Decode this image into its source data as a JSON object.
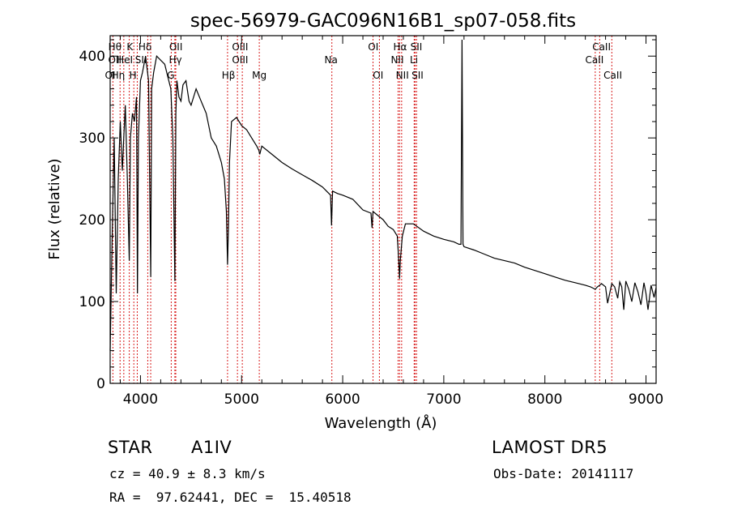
{
  "chart_data": {
    "type": "line",
    "title": "spec-56979-GAC096N16B1_sp07-058.fits",
    "xlabel": "Wavelength (Å)",
    "ylabel": "Flux (relative)",
    "xlim": [
      3700,
      9100
    ],
    "ylim": [
      0,
      425
    ],
    "xticks": [
      4000,
      5000,
      6000,
      7000,
      8000,
      9000
    ],
    "yticks": [
      0,
      100,
      200,
      300,
      400
    ],
    "line_color": "#000000",
    "marker_color": "#d81b1b",
    "series": [
      {
        "x": [
          3700,
          3720,
          3740,
          3760,
          3780,
          3800,
          3820,
          3835,
          3850,
          3870,
          3889,
          3900,
          3920,
          3940,
          3960,
          3970,
          3980,
          4000,
          4020,
          4050,
          4080,
          4101,
          4110,
          4130,
          4160,
          4200,
          4240,
          4270,
          4300,
          4320,
          4340,
          4350,
          4360,
          4380,
          4400,
          4420,
          4450,
          4480,
          4500,
          4550,
          4600,
          4650,
          4700,
          4750,
          4800,
          4830,
          4850,
          4861,
          4870,
          4880,
          4900,
          4950,
          5000,
          5050,
          5100,
          5150,
          5170,
          5180,
          5200,
          5300,
          5400,
          5500,
          5600,
          5700,
          5800,
          5880,
          5890,
          5900,
          5950,
          6000,
          6100,
          6200,
          6280,
          6290,
          6300,
          6350,
          6400,
          6450,
          6500,
          6540,
          6555,
          6563,
          6570,
          6590,
          6620,
          6700,
          6800,
          6900,
          7000,
          7100,
          7150,
          7170,
          7180,
          7190,
          7200,
          7300,
          7400,
          7500,
          7600,
          7700,
          7800,
          7900,
          8000,
          8100,
          8200,
          8300,
          8400,
          8450,
          8498,
          8520,
          8542,
          8560,
          8600,
          8620,
          8662,
          8690,
          8720,
          8740,
          8760,
          8780,
          8800,
          8830,
          8860,
          8890,
          8920,
          8950,
          8980,
          9000,
          9020,
          9050,
          9080,
          9100
        ],
        "y": [
          40,
          180,
          300,
          110,
          250,
          320,
          260,
          300,
          340,
          250,
          150,
          300,
          330,
          320,
          350,
          110,
          300,
          370,
          380,
          400,
          370,
          130,
          360,
          380,
          400,
          395,
          390,
          375,
          360,
          300,
          125,
          330,
          370,
          350,
          345,
          365,
          370,
          345,
          340,
          360,
          345,
          330,
          300,
          290,
          270,
          250,
          210,
          145,
          190,
          270,
          320,
          325,
          315,
          310,
          300,
          290,
          285,
          280,
          290,
          280,
          270,
          262,
          255,
          248,
          240,
          230,
          193,
          235,
          232,
          230,
          225,
          212,
          208,
          190,
          210,
          205,
          200,
          192,
          188,
          180,
          150,
          128,
          150,
          180,
          195,
          195,
          186,
          180,
          176,
          173,
          170,
          170,
          420,
          170,
          167,
          163,
          158,
          153,
          150,
          147,
          142,
          138,
          134,
          130,
          126,
          123,
          120,
          118,
          115,
          118,
          120,
          122,
          118,
          98,
          122,
          118,
          104,
          124,
          118,
          90,
          125,
          115,
          100,
          123,
          112,
          96,
          123,
          110,
          90,
          120,
          105,
          117
        ]
      }
    ],
    "lines": [
      {
        "name": "Hθ",
        "x": 3798,
        "row": 1,
        "tx": 3747
      },
      {
        "name": "K",
        "x": 3934,
        "row": 1,
        "tx": 3895
      },
      {
        "name": "Hδ",
        "x": 4101,
        "row": 1,
        "tx": 4045
      },
      {
        "name": "OII",
        "x": 4349,
        "row": 1,
        "tx": 4350
      },
      {
        "name": "OIII",
        "x": 5007,
        "row": 1,
        "tx": 4985
      },
      {
        "name": "OI",
        "x": 6300,
        "row": 1,
        "tx": 6302
      },
      {
        "name": "Hα",
        "x": 6563,
        "row": 1,
        "tx": 6568
      },
      {
        "name": "SII",
        "x": 6716,
        "row": 1,
        "tx": 6728
      },
      {
        "name": "CaII",
        "x": 8542,
        "row": 1,
        "tx": 8560
      },
      {
        "name": "OII",
        "x": 3727,
        "row": 2,
        "tx": 3746
      },
      {
        "name": "HeI",
        "x": 3889,
        "row": 2,
        "tx": 3845
      },
      {
        "name": "SII",
        "x": 4072,
        "row": 2,
        "tx": 4005
      },
      {
        "name": "Hγ",
        "x": 4340,
        "row": 2,
        "tx": 4345
      },
      {
        "name": "OIII",
        "x": 4959,
        "row": 2,
        "tx": 4985
      },
      {
        "name": "Na",
        "x": 5893,
        "row": 2,
        "tx": 5885
      },
      {
        "name": "NII",
        "x": 6548,
        "row": 2,
        "tx": 6540
      },
      {
        "name": "Li",
        "x": 6707,
        "row": 2,
        "tx": 6705
      },
      {
        "name": "CaII",
        "x": 8498,
        "row": 2,
        "tx": 8490
      },
      {
        "name": "OI",
        "x": 3700,
        "row": 3,
        "tx": 3700
      },
      {
        "name": "Hη",
        "x": 3835,
        "row": 3,
        "tx": 3780
      },
      {
        "name": "H",
        "x": 3968,
        "row": 3,
        "tx": 3925
      },
      {
        "name": "G",
        "x": 4304,
        "row": 3,
        "tx": 4300
      },
      {
        "name": "Hβ",
        "x": 4861,
        "row": 3,
        "tx": 4870
      },
      {
        "name": "Mg",
        "x": 5175,
        "row": 3,
        "tx": 5175
      },
      {
        "name": "OI",
        "x": 6363,
        "row": 3,
        "tx": 6350
      },
      {
        "name": "NII",
        "x": 6583,
        "row": 3,
        "tx": 6590
      },
      {
        "name": "SII",
        "x": 6731,
        "row": 3,
        "tx": 6740
      },
      {
        "name": "CaII",
        "x": 8662,
        "row": 3,
        "tx": 8672
      }
    ]
  },
  "info": {
    "class": "STAR",
    "subclass": "A1IV",
    "survey": "LAMOST DR5",
    "redshift": "cz = 40.9 ± 8.3 km/s",
    "obsdate": "Obs-Date: 20141117",
    "coords": "RA =  97.62441, DEC =  15.40518"
  }
}
